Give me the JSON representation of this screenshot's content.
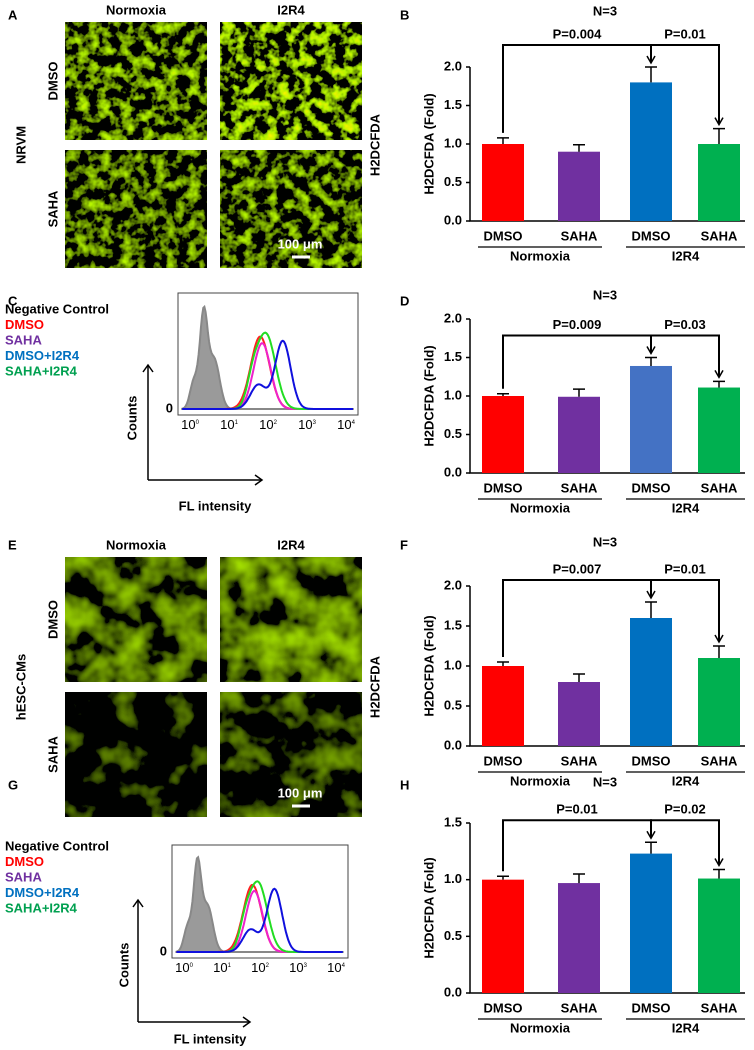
{
  "panel_labels": [
    "A",
    "B",
    "C",
    "D",
    "E",
    "F",
    "G",
    "H"
  ],
  "microscopy": [
    {
      "columns": [
        "Normoxia",
        "I2R4"
      ],
      "rows": [
        "DMSO",
        "SAHA"
      ],
      "cell_type": "NRVM",
      "stain": "H2DCFDA",
      "scale_bar": "100 μm"
    },
    {
      "columns": [
        "Normoxia",
        "I2R4"
      ],
      "rows": [
        "DMSO",
        "SAHA"
      ],
      "cell_type": "hESC-CMs",
      "stain": "H2DCFDA",
      "scale_bar": "100 μm"
    }
  ],
  "flow": [
    {
      "legend": [
        {
          "label": "Negative Control",
          "color": "#000000"
        },
        {
          "label": "DMSO",
          "color": "#ff0000"
        },
        {
          "label": "SAHA",
          "color": "#7030a0"
        },
        {
          "label": "DMSO+I2R4",
          "color": "#0070c0"
        },
        {
          "label": "SAHA+I2R4",
          "color": "#00a050"
        }
      ],
      "y_axis": "Counts",
      "x_axis": "FL intensity",
      "y_tick": "0",
      "x_ticks": [
        {
          "base": "10",
          "exp": "0"
        },
        {
          "base": "10",
          "exp": "1"
        },
        {
          "base": "10",
          "exp": "2"
        },
        {
          "base": "10",
          "exp": "3"
        },
        {
          "base": "10",
          "exp": "4"
        }
      ]
    },
    {
      "legend": [
        {
          "label": "Negative Control",
          "color": "#000000"
        },
        {
          "label": "DMSO",
          "color": "#ff0000"
        },
        {
          "label": "SAHA",
          "color": "#7030a0"
        },
        {
          "label": "DMSO+I2R4",
          "color": "#0070c0"
        },
        {
          "label": "SAHA+I2R4",
          "color": "#00a050"
        }
      ],
      "y_axis": "Counts",
      "x_axis": "FL intensity",
      "y_tick": "0",
      "x_ticks": [
        {
          "base": "10",
          "exp": "0"
        },
        {
          "base": "10",
          "exp": "1"
        },
        {
          "base": "10",
          "exp": "2"
        },
        {
          "base": "10",
          "exp": "3"
        },
        {
          "base": "10",
          "exp": "4"
        }
      ]
    }
  ],
  "chart_data": [
    {
      "type": "bar",
      "title": "N=3",
      "y_label": "H2DCFDA (Fold)",
      "categories": [
        "DMSO",
        "SAHA",
        "DMSO",
        "SAHA"
      ],
      "groups": [
        "Normoxia",
        "I2R4"
      ],
      "values": [
        1.0,
        0.9,
        1.8,
        1.0
      ],
      "errors": [
        0.08,
        0.09,
        0.2,
        0.2
      ],
      "colors": [
        "#ff0000",
        "#7030a0",
        "#0070c0",
        "#00b050"
      ],
      "annotations": [
        "P=0.004",
        "P=0.01"
      ],
      "ylim": [
        0,
        2
      ],
      "yticks": [
        {
          "value": 0,
          "label": "0.0"
        },
        0.5,
        {
          "value": 1,
          "label": "1.0"
        },
        1.5,
        {
          "value": 2,
          "label": "2.0"
        }
      ]
    },
    {
      "type": "bar",
      "title": "N=3",
      "y_label": "H2DCFDA (Fold)",
      "categories": [
        "DMSO",
        "SAHA",
        "DMSO",
        "SAHA"
      ],
      "groups": [
        "Normoxia",
        "I2R4"
      ],
      "values": [
        1.0,
        0.99,
        1.39,
        1.11
      ],
      "errors": [
        0.03,
        0.1,
        0.11,
        0.08
      ],
      "colors": [
        "#ff0000",
        "#7030a0",
        "#4472c4",
        "#00b050"
      ],
      "annotations": [
        "P=0.009",
        "P=0.03"
      ],
      "ylim": [
        0,
        2
      ],
      "yticks": [
        {
          "value": 0,
          "label": "0.0"
        },
        0.5,
        {
          "value": 1,
          "label": "1.0"
        },
        1.5,
        {
          "value": 2,
          "label": "2.0"
        }
      ]
    },
    {
      "type": "bar",
      "title": "N=3",
      "y_label": "H2DCFDA (Fold)",
      "categories": [
        "DMSO",
        "SAHA",
        "DMSO",
        "SAHA"
      ],
      "groups": [
        "Normoxia",
        "I2R4"
      ],
      "values": [
        1.0,
        0.8,
        1.6,
        1.1
      ],
      "errors": [
        0.05,
        0.1,
        0.2,
        0.15
      ],
      "colors": [
        "#ff0000",
        "#7030a0",
        "#0070c0",
        "#00b050"
      ],
      "annotations": [
        "P=0.007",
        "P=0.01"
      ],
      "ylim": [
        0,
        2
      ],
      "yticks": [
        {
          "value": 0,
          "label": "0.0"
        },
        0.5,
        {
          "value": 1,
          "label": "1.0"
        },
        1.5,
        {
          "value": 2,
          "label": "2.0"
        }
      ]
    },
    {
      "type": "bar",
      "title": "N=3",
      "y_label": "H2DCFDA (Fold)",
      "categories": [
        "DMSO",
        "SAHA",
        "DMSO",
        "SAHA"
      ],
      "groups": [
        "Normoxia",
        "I2R4"
      ],
      "values": [
        1.0,
        0.97,
        1.23,
        1.01
      ],
      "errors": [
        0.03,
        0.08,
        0.1,
        0.08
      ],
      "colors": [
        "#ff0000",
        "#7030a0",
        "#0070c0",
        "#00b050"
      ],
      "annotations": [
        "P=0.01",
        "P=0.02"
      ],
      "ylim": [
        0,
        1.5
      ],
      "yticks": [
        {
          "value": 0,
          "label": "0.0"
        },
        0.5,
        {
          "value": 1,
          "label": "1.0"
        },
        1.5
      ]
    }
  ]
}
